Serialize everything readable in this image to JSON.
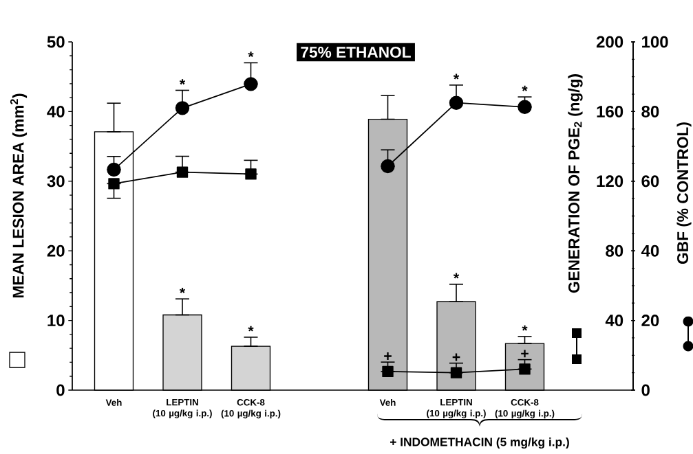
{
  "chart_data": {
    "type": "bar",
    "title": "75% ETHANOL",
    "categories": [
      "Veh",
      "LEPTIN\n(10 µg/kg i.p.)",
      "CCK-8\n(10 µg/kg i.p.)",
      null,
      "Veh",
      "LEPTIN\n(10 µg/kg i.p.)",
      "CCK-8\n(10 µg/kg i.p.)"
    ],
    "ylabel": "MEAN LESION AREA (mm$^{2}$)",
    "y2label": "GENERATION OF PGE$_{2}$ (ng/g)",
    "y3label": "GBF (% CONTROL)",
    "ylim": [
      0,
      50
    ],
    "yticks": [
      0,
      10,
      20,
      30,
      40,
      50
    ],
    "y2lim": [
      0,
      200
    ],
    "y2ticks": [
      {
        "value": 0,
        "label": null
      },
      40,
      80,
      120,
      160,
      200
    ],
    "y3lim": [
      0,
      100
    ],
    "y3ticks": [
      0,
      20,
      40,
      60,
      80,
      100
    ],
    "annotations": [
      "+ INDOMETHACIN (5 mg/kg i.p.)"
    ],
    "series": [
      {
        "color": "#000000",
        "colors": [
          "#ffffff",
          "#d4d4d4",
          "#d4d4d4",
          null,
          "#b8b8b8",
          "#b8b8b8",
          "#b8b8b8"
        ],
        "values": [
          37.1,
          10.8,
          6.3,
          null,
          38.9,
          12.7,
          6.7
        ],
        "errors": [
          [
            37.1,
            41.2
          ],
          [
            10.8,
            13.1
          ],
          [
            6.3,
            7.6
          ],
          null,
          [
            38.9,
            42.3
          ],
          [
            12.7,
            15.2
          ],
          [
            6.7,
            7.7
          ]
        ],
        "value_labels": [
          null,
          "*",
          "*",
          null,
          null,
          "*",
          "*"
        ]
      },
      {
        "type": "line",
        "axis": "y2",
        "marker": "square",
        "line_style": "solid",
        "color": "#000000",
        "values": [
          118.6,
          125.2,
          124.1,
          null,
          10.7,
          10.0,
          12.1
        ],
        "errors": [
          [
            110.2,
            118.6
          ],
          [
            125.2,
            134.3
          ],
          [
            124.1,
            132.0
          ],
          null,
          [
            10.7,
            16.1
          ],
          [
            10.0,
            15.5
          ],
          [
            12.1,
            17.5
          ]
        ],
        "value_labels": [
          null,
          null,
          null,
          null,
          "+",
          "+",
          "+"
        ]
      },
      {
        "type": "line",
        "axis": "y3",
        "marker": "circle",
        "line_style": "solid",
        "color": "#000000",
        "values": [
          63.3,
          81.0,
          87.9,
          null,
          64.3,
          82.5,
          81.3
        ],
        "errors": [
          [
            63.3,
            67.1
          ],
          [
            81.0,
            86.1
          ],
          [
            87.9,
            94.0
          ],
          null,
          [
            64.3,
            69.0
          ],
          [
            82.5,
            87.6
          ],
          [
            81.3,
            84.2
          ]
        ],
        "value_labels": [
          null,
          "*",
          "*",
          null,
          null,
          "*",
          "*"
        ]
      }
    ]
  }
}
